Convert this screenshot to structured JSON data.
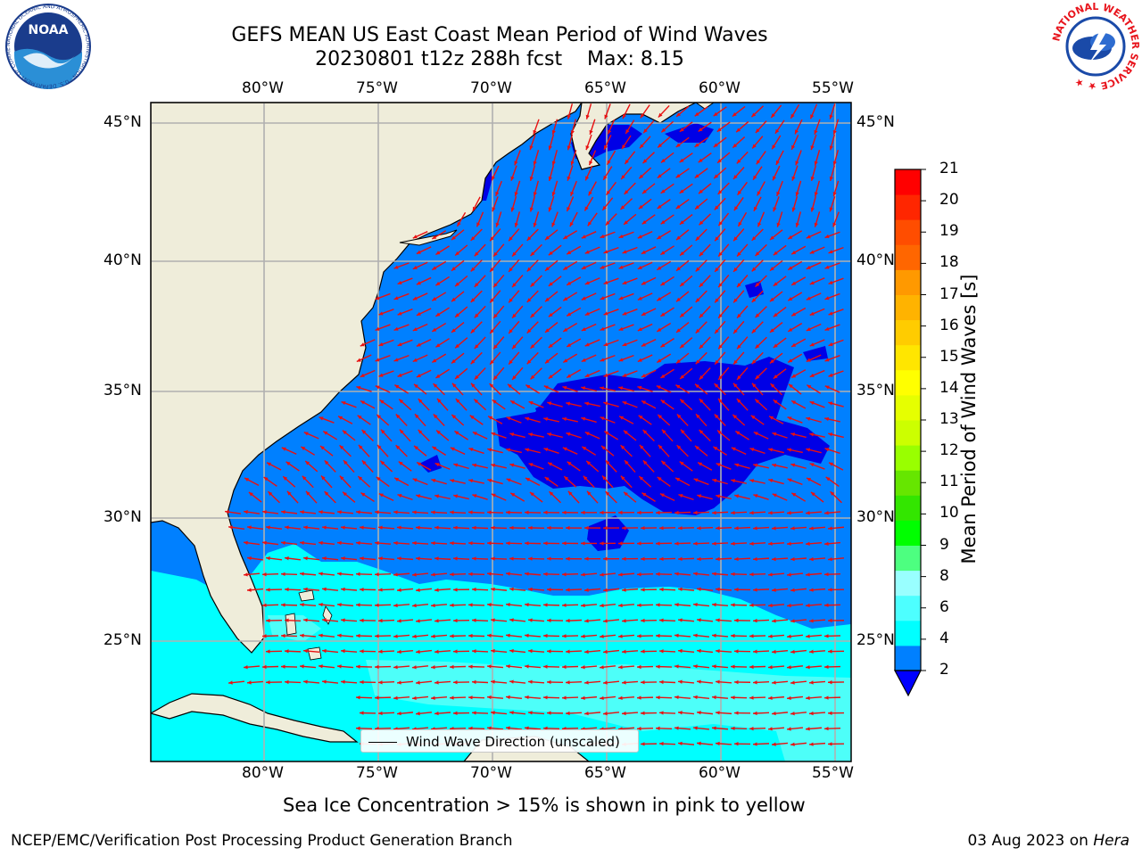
{
  "header": {
    "title_line1": "GEFS MEAN US East Coast Mean Period of Wind Waves",
    "title_line2": "20230801 t12z 288h fcst    Max: 8.15"
  },
  "logos": {
    "left": {
      "name": "NOAA",
      "ring_text": "NATIONAL OCEANIC AND ATMOSPHERIC ADMINISTRATION · U.S. DEPARTMENT OF COMMERCE",
      "primary": "#1a3c8c",
      "sky": "#2b8fd6"
    },
    "right": {
      "name": "NATIONAL WEATHER SERVICE",
      "ring_color": "#e8141c",
      "primary": "#1a4aa8"
    }
  },
  "map": {
    "longitude_labels": [
      "80°W",
      "75°W",
      "70°W",
      "65°W",
      "60°W",
      "55°W"
    ],
    "latitude_labels": [
      "45°N",
      "40°N",
      "35°N",
      "30°N",
      "25°N"
    ],
    "colors": {
      "land": "#efedda",
      "ocean_2_4": "#0080ff",
      "ocean_below_2": "#0000e6",
      "ocean_4_6": "#00ffff",
      "ocean_6_8": "#4dfff9",
      "grid": "#b0b0b0",
      "arrow": "#e81010"
    },
    "legend": {
      "label": "Wind Wave Direction (unscaled)"
    }
  },
  "colorbar": {
    "label": "Mean Period of Wind Waves [s]",
    "ticks": [
      "2",
      "4",
      "6",
      "8",
      "9",
      "10",
      "11",
      "12",
      "13",
      "14",
      "15",
      "16",
      "17",
      "18",
      "19",
      "20",
      "21"
    ],
    "colors": [
      "#0080ff",
      "#00ffff",
      "#4dffff",
      "#99ffff",
      "#4dff80",
      "#00ff00",
      "#33e600",
      "#66e600",
      "#99ff00",
      "#ccff00",
      "#e6ff00",
      "#ffff00",
      "#ffe600",
      "#ffcc00",
      "#ffb300",
      "#ff9900",
      "#ff6600",
      "#ff4d00",
      "#ff2600",
      "#ff0000"
    ],
    "under_color": "#0000ff"
  },
  "subcaption": "Sea Ice Concentration > 15% is shown in pink to yellow",
  "footer": {
    "left": "NCEP/EMC/Verification Post Processing Product Generation Branch",
    "date": "03 Aug 2023 on ",
    "machine": "Hera"
  }
}
